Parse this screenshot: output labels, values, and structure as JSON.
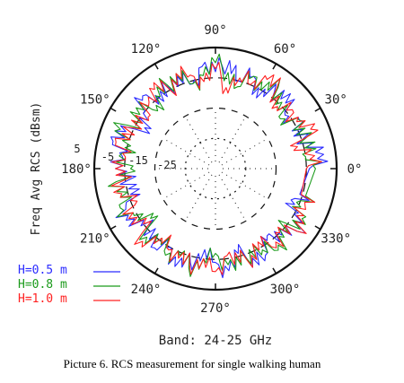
{
  "chart_data": {
    "type": "polar",
    "title": "",
    "band_label": "Band: 24-25 GHz",
    "ylabel": "Freq Avg RCS (dBsm)",
    "caption": "Picture 6. RCS measurement for single walking human",
    "radial_ticks": [
      "5",
      "-5",
      "-15",
      "-25"
    ],
    "radial_range_dbsm": [
      -35,
      5
    ],
    "angle_labels": [
      "0°",
      "30°",
      "60°",
      "90°",
      "120°",
      "150°",
      "180°",
      "210°",
      "240°",
      "270°",
      "300°",
      "330°"
    ],
    "angles_deg": [
      0,
      30,
      60,
      90,
      120,
      150,
      180,
      210,
      240,
      270,
      300,
      330
    ],
    "grid": true,
    "legend_position": "bottom-left",
    "series": [
      {
        "name": "H=0.5 m",
        "color": "#2b2bff",
        "angle_step_deg": 7.5,
        "values": [
          -4,
          1,
          -2,
          -7,
          -3,
          -6,
          0,
          -3,
          -8,
          -2,
          -5,
          1,
          -3,
          -1,
          -6,
          -2,
          -4,
          -7,
          -1,
          -5,
          -8,
          -3,
          0,
          -4,
          -2,
          -6,
          -9,
          -3,
          -1,
          -4,
          -7,
          -2,
          -5,
          0,
          -3,
          -8,
          -4,
          -1,
          -6,
          -3,
          -2,
          -7,
          -4,
          -1,
          -5,
          -8
        ]
      },
      {
        "name": "H=0.8 m",
        "color": "#1a9a1a",
        "angle_step_deg": 7.5,
        "values": [
          -2,
          -5,
          -1,
          -6,
          -3,
          -8,
          -4,
          -1,
          -5,
          -2,
          -7,
          -3,
          0,
          -4,
          -6,
          -1,
          -3,
          -5,
          -8,
          -2,
          -4,
          -1,
          -6,
          -3,
          -7,
          -2,
          -5,
          -1,
          -4,
          -8,
          -3,
          -6,
          -2,
          -4,
          -1,
          -5,
          -7,
          -3,
          -2,
          -6,
          -4,
          -1,
          -3,
          -5,
          -2,
          -6
        ]
      },
      {
        "name": "H=1.0 m",
        "color": "#ff2020",
        "angle_step_deg": 7.5,
        "values": [
          -5,
          -2,
          -7,
          -1,
          -4,
          -3,
          -6,
          -2,
          -1,
          -5,
          -4,
          -8,
          -2,
          -6,
          -3,
          -1,
          -5,
          -2,
          -4,
          -7,
          -3,
          -6,
          -1,
          -5,
          -2,
          -4,
          -3,
          -7,
          -2,
          -5,
          -1,
          -6,
          -4,
          -3,
          -2,
          -5,
          -1,
          -6,
          -3,
          -4,
          -7,
          -2,
          -5,
          -1,
          -4,
          -3
        ]
      }
    ]
  }
}
